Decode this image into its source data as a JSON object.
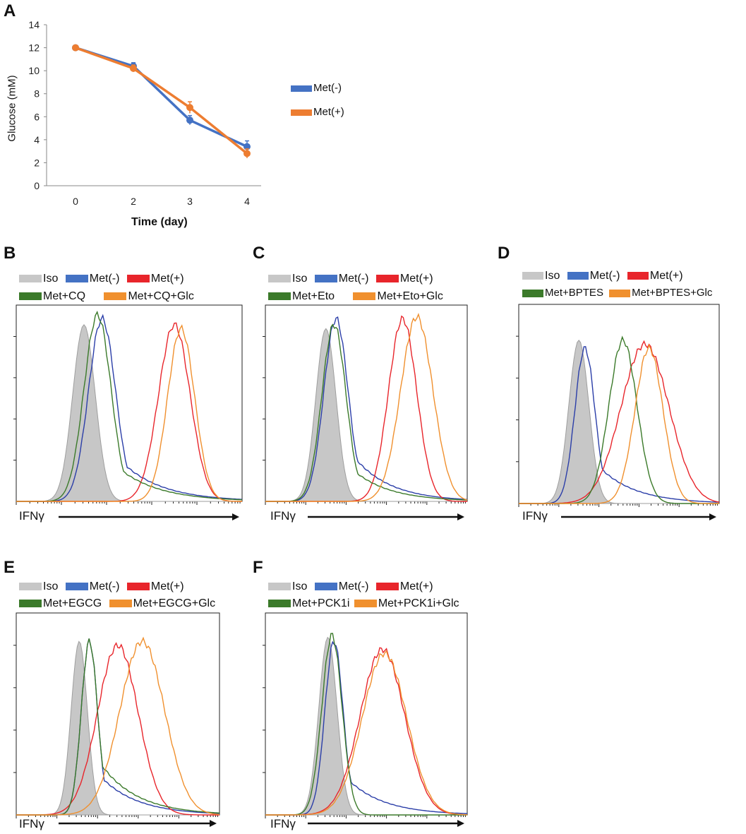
{
  "figure": {
    "panels": [
      "A",
      "B",
      "C",
      "D",
      "E",
      "F"
    ],
    "colors": {
      "iso": "#c7c7c7",
      "met_minus": "#4472c4",
      "met_plus": "#e8252b",
      "green": "#3b7a2a",
      "orange": "#f0902e",
      "line_blue": "#4472c4",
      "line_orange": "#ed7d31",
      "blue_trace": "#2b3ea8"
    }
  },
  "chart_data": [
    {
      "panel": "A",
      "type": "line",
      "title": "",
      "xlabel": "Time (day)",
      "ylabel": "Glucose (mM)",
      "categories": [
        "0",
        "2",
        "3",
        "4"
      ],
      "ylim": [
        0,
        14
      ],
      "yticks": [
        "0",
        "2",
        "4",
        "6",
        "8",
        "10",
        "12",
        "14"
      ],
      "legend_position": "right",
      "series": [
        {
          "name": "Met(-)",
          "values": [
            12.0,
            10.4,
            5.7,
            3.4
          ],
          "errors": [
            0.2,
            0.3,
            0.4,
            0.5
          ]
        },
        {
          "name": "Met(+)",
          "values": [
            12.0,
            10.2,
            6.8,
            2.8
          ],
          "errors": [
            0.2,
            0.3,
            0.5,
            0.4
          ]
        }
      ]
    },
    {
      "panel": "B",
      "type": "histogram",
      "xlabel": "IFNγ",
      "legend_row1": [
        "Iso",
        "Met(-)",
        "Met(+)"
      ],
      "legend_row2": [
        "Met+CQ",
        "Met+CQ+Glc"
      ],
      "series": [
        {
          "name": "Iso",
          "peak": 0.3,
          "height": 0.9,
          "spread": 0.05,
          "filled": true
        },
        {
          "name": "Met(-)",
          "peak": 0.38,
          "height": 0.93,
          "spread": 0.06,
          "tail": 0.35
        },
        {
          "name": "Met(+)",
          "peak": 0.7,
          "height": 0.9,
          "spread": 0.07
        },
        {
          "name": "Met+CQ",
          "peak": 0.36,
          "height": 0.95,
          "spread": 0.06,
          "tail": 0.3
        },
        {
          "name": "Met+CQ+Glc",
          "peak": 0.73,
          "height": 0.88,
          "spread": 0.06
        }
      ]
    },
    {
      "panel": "C",
      "type": "histogram",
      "xlabel": "IFNγ",
      "legend_row1": [
        "Iso",
        "Met(-)",
        "Met(+)"
      ],
      "legend_row2": [
        "Met+Eto",
        "Met+Eto+Glc"
      ],
      "series": [
        {
          "name": "Iso",
          "peak": 0.3,
          "height": 0.88,
          "spread": 0.05,
          "filled": true
        },
        {
          "name": "Met(-)",
          "peak": 0.35,
          "height": 0.93,
          "spread": 0.06,
          "tail": 0.4
        },
        {
          "name": "Met(+)",
          "peak": 0.68,
          "height": 0.93,
          "spread": 0.07
        },
        {
          "name": "Met+Eto",
          "peak": 0.34,
          "height": 0.9,
          "spread": 0.06,
          "tail": 0.3
        },
        {
          "name": "Met+Eto+Glc",
          "peak": 0.75,
          "height": 0.94,
          "spread": 0.08
        }
      ]
    },
    {
      "panel": "D",
      "type": "histogram",
      "xlabel": "IFNγ",
      "legend_row1": [
        "Iso",
        "Met(-)",
        "Met(+)"
      ],
      "legend_row2": [
        "Met+BPTES",
        "Met+BPTES+Glc"
      ],
      "series": [
        {
          "name": "Iso",
          "peak": 0.3,
          "height": 0.82,
          "spread": 0.05,
          "filled": true
        },
        {
          "name": "Met(-)",
          "peak": 0.33,
          "height": 0.78,
          "spread": 0.05,
          "tail": 0.35
        },
        {
          "name": "Met(+)",
          "peak": 0.63,
          "height": 0.8,
          "spread": 0.12
        },
        {
          "name": "Met+BPTES",
          "peak": 0.52,
          "height": 0.82,
          "spread": 0.07
        },
        {
          "name": "Met+BPTES+Glc",
          "peak": 0.65,
          "height": 0.78,
          "spread": 0.07
        }
      ]
    },
    {
      "panel": "E",
      "type": "histogram",
      "xlabel": "IFNγ",
      "legend_row1": [
        "Iso",
        "Met(-)",
        "Met(+)"
      ],
      "legend_row2": [
        "Met+EGCG",
        "Met+EGCG+Glc"
      ],
      "series": [
        {
          "name": "Iso",
          "peak": 0.31,
          "height": 0.86,
          "spread": 0.04,
          "filled": true
        },
        {
          "name": "Met(-)",
          "peak": 0.36,
          "height": 0.86,
          "spread": 0.04,
          "tail": 0.3
        },
        {
          "name": "Met(+)",
          "peak": 0.5,
          "height": 0.84,
          "spread": 0.1
        },
        {
          "name": "Met+EGCG",
          "peak": 0.36,
          "height": 0.86,
          "spread": 0.04,
          "tail": 0.4
        },
        {
          "name": "Met+EGCG+Glc",
          "peak": 0.62,
          "height": 0.86,
          "spread": 0.11
        }
      ]
    },
    {
      "panel": "F",
      "type": "histogram",
      "xlabel": "IFNγ",
      "legend_row1": [
        "Iso",
        "Met(-)",
        "Met(+)"
      ],
      "legend_row2": [
        "Met+PCK1i",
        "Met+PCK1i+Glc"
      ],
      "series": [
        {
          "name": "Iso",
          "peak": 0.31,
          "height": 0.88,
          "spread": 0.045,
          "filled": true
        },
        {
          "name": "Met(-)",
          "peak": 0.34,
          "height": 0.86,
          "spread": 0.045,
          "tail": 0.3
        },
        {
          "name": "Met(+)",
          "peak": 0.58,
          "height": 0.82,
          "spread": 0.11
        },
        {
          "name": "Met+PCK1i",
          "peak": 0.33,
          "height": 0.89,
          "spread": 0.05
        },
        {
          "name": "Met+PCK1i+Glc",
          "peak": 0.59,
          "height": 0.8,
          "spread": 0.11
        }
      ]
    }
  ]
}
